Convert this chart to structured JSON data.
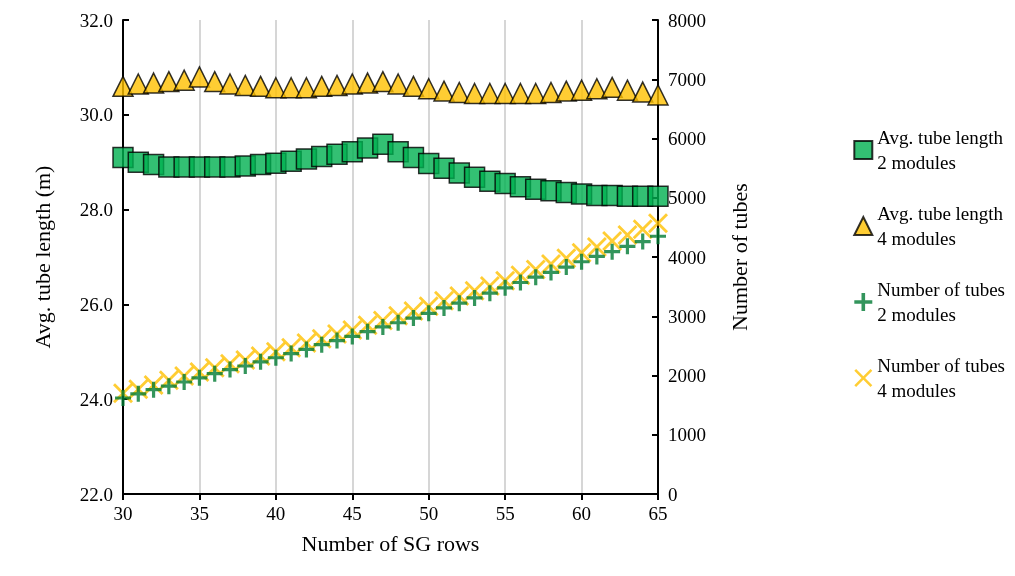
{
  "chart_data": {
    "type": "scatter",
    "xlabel": "Number of SG rows",
    "ylabel": "Avg. tube length (m)",
    "y2label": "Number of tubes",
    "x": [
      30,
      31,
      32,
      33,
      34,
      35,
      36,
      37,
      38,
      39,
      40,
      41,
      42,
      43,
      44,
      45,
      46,
      47,
      48,
      49,
      50,
      51,
      52,
      53,
      54,
      55,
      56,
      57,
      58,
      59,
      60,
      61,
      62,
      63,
      64,
      65
    ],
    "xlim": [
      30,
      65
    ],
    "xticks": [
      30,
      35,
      40,
      45,
      50,
      55,
      60,
      65
    ],
    "ylim": [
      22,
      32
    ],
    "yticks": [
      {
        "value": 22,
        "label": "22.0"
      },
      {
        "value": 24,
        "label": "24.0"
      },
      {
        "value": 26,
        "label": "26.0"
      },
      {
        "value": 28,
        "label": "28.0"
      },
      {
        "value": 30,
        "label": "30.0"
      },
      {
        "value": 32,
        "label": "32.0"
      }
    ],
    "y2lim": [
      0,
      8000
    ],
    "y2ticks": [
      0,
      1000,
      2000,
      3000,
      4000,
      5000,
      6000,
      7000,
      8000
    ],
    "grid": "x",
    "legend": "right",
    "series": [
      {
        "name": "Avg. tube length\n2 modules",
        "color": "#00b050",
        "marker": "square",
        "values": [
          29.1,
          29.0,
          28.95,
          28.9,
          28.9,
          28.9,
          28.9,
          28.9,
          28.92,
          28.95,
          28.98,
          29.02,
          29.07,
          29.12,
          29.17,
          29.22,
          29.3,
          29.38,
          29.22,
          29.1,
          28.97,
          28.87,
          28.77,
          28.68,
          28.6,
          28.55,
          28.48,
          28.43,
          28.4,
          28.36,
          28.33,
          28.3,
          28.3,
          28.28,
          28.28,
          28.28
        ]
      },
      {
        "name": "Avg. tube length\n4 modules",
        "color": "#ffc000",
        "marker": "triangle",
        "values": [
          30.6,
          30.65,
          30.67,
          30.7,
          30.73,
          30.8,
          30.7,
          30.65,
          30.62,
          30.6,
          30.57,
          30.57,
          30.57,
          30.6,
          30.62,
          30.65,
          30.67,
          30.7,
          30.65,
          30.6,
          30.55,
          30.5,
          30.47,
          30.45,
          30.45,
          30.45,
          30.45,
          30.45,
          30.47,
          30.5,
          30.52,
          30.55,
          30.58,
          30.52,
          30.48,
          30.42
        ]
      },
      {
        "name": "Number of tubes\n2 modules",
        "color": "#007a33",
        "marker": "plus",
        "axis": "y2",
        "values": [
          1620,
          1690,
          1760,
          1820,
          1890,
          1960,
          2030,
          2100,
          2160,
          2230,
          2300,
          2370,
          2440,
          2520,
          2590,
          2660,
          2740,
          2820,
          2890,
          2970,
          3050,
          3140,
          3220,
          3310,
          3390,
          3480,
          3570,
          3660,
          3740,
          3830,
          3920,
          4010,
          4090,
          4180,
          4260,
          4350
        ]
      },
      {
        "name": "Number of tubes\n4 modules",
        "color": "#ffc000",
        "marker": "cross",
        "axis": "y2",
        "values": [
          1700,
          1770,
          1840,
          1920,
          1990,
          2060,
          2130,
          2200,
          2260,
          2330,
          2400,
          2470,
          2550,
          2620,
          2700,
          2770,
          2850,
          2930,
          3010,
          3090,
          3170,
          3260,
          3340,
          3430,
          3510,
          3600,
          3690,
          3790,
          3880,
          3980,
          4070,
          4170,
          4270,
          4370,
          4470,
          4570
        ]
      }
    ]
  }
}
